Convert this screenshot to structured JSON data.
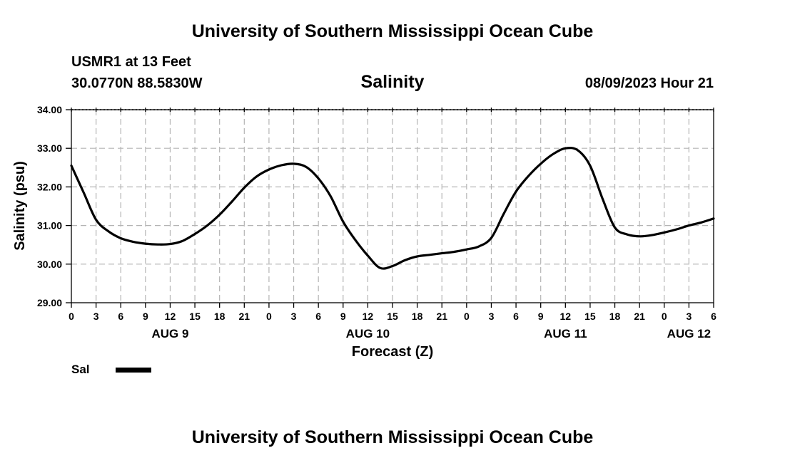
{
  "header": {
    "org_title": "University of Southern Mississippi Ocean Cube",
    "station": "USMR1 at 13 Feet",
    "coords": "30.0770N  88.5830W",
    "timestamp": "08/09/2023 Hour 21"
  },
  "footer": {
    "org_title": "University of Southern Mississippi Ocean Cube"
  },
  "colors": {
    "line": "#000000",
    "grid": "#b4b4b4"
  },
  "chart_data": {
    "type": "line",
    "title": "Salinity",
    "ylabel": "Salinity (psu)",
    "xlabel": "Forecast (Z)",
    "ylim": [
      29,
      34
    ],
    "yticks": [
      "29.00",
      "30.00",
      "31.00",
      "32.00",
      "33.00",
      "34.00"
    ],
    "x_range_hours": [
      0,
      78
    ],
    "xtick_labels": [
      "0",
      "3",
      "6",
      "9",
      "12",
      "15",
      "18",
      "21",
      "0",
      "3",
      "6",
      "9",
      "12",
      "15",
      "18",
      "21",
      "0",
      "3",
      "6",
      "9",
      "12",
      "15",
      "18",
      "21",
      "0",
      "3",
      "6"
    ],
    "date_labels": [
      {
        "label": "AUG 9",
        "hour": 12
      },
      {
        "label": "AUG 10",
        "hour": 36
      },
      {
        "label": "AUG 11",
        "hour": 60
      },
      {
        "label": "AUG 12",
        "hour": 75
      }
    ],
    "grid": true,
    "legend": [
      {
        "name": "Sal",
        "position": "bottom-left"
      }
    ],
    "series": [
      {
        "name": "Sal",
        "x": [
          0,
          1.5,
          3,
          4.5,
          6,
          7.5,
          9,
          10.5,
          12,
          13.5,
          15,
          16.5,
          18,
          19.5,
          21,
          22.5,
          24,
          25.5,
          27,
          28.5,
          30,
          31.5,
          33,
          34.5,
          36,
          37.5,
          39,
          40.5,
          42,
          43.5,
          45,
          46.5,
          48,
          49.5,
          51,
          52.5,
          54,
          55.5,
          57,
          58.5,
          60,
          61.5,
          63,
          64.5,
          66,
          67.5,
          69,
          70.5,
          72,
          73.5,
          75,
          76.5,
          78
        ],
        "y": [
          32.55,
          31.85,
          31.15,
          30.85,
          30.67,
          30.58,
          30.53,
          30.51,
          30.52,
          30.6,
          30.78,
          31.0,
          31.28,
          31.62,
          31.98,
          32.27,
          32.45,
          32.56,
          32.6,
          32.52,
          32.22,
          31.75,
          31.1,
          30.62,
          30.22,
          29.9,
          29.95,
          30.1,
          30.2,
          30.24,
          30.28,
          30.32,
          30.38,
          30.46,
          30.68,
          31.3,
          31.88,
          32.28,
          32.6,
          32.85,
          33.0,
          32.95,
          32.55,
          31.7,
          30.95,
          30.77,
          30.72,
          30.75,
          30.82,
          30.9,
          31.0,
          31.08,
          31.18
        ]
      }
    ]
  }
}
